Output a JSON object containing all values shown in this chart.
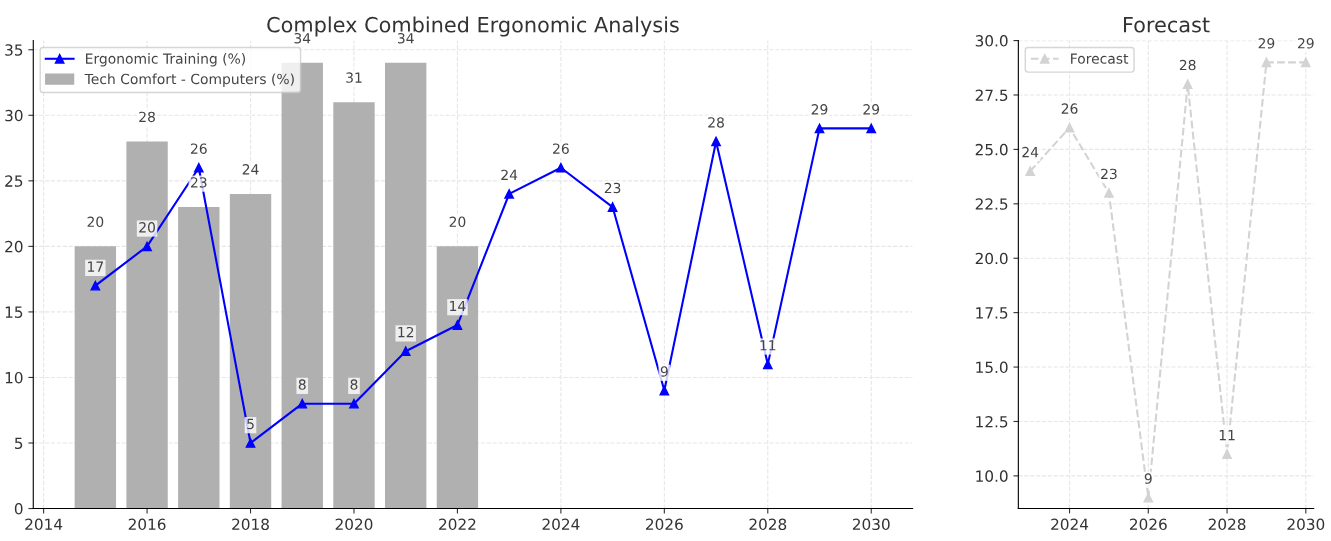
{
  "chart_data": [
    {
      "type": "bar",
      "title": "Complex Combined Ergonomic Analysis",
      "xlim": [
        2013.8,
        2030.8
      ],
      "ylim": [
        0,
        35.7
      ],
      "xticks": [
        2014,
        2016,
        2018,
        2020,
        2022,
        2024,
        2026,
        2028,
        2030
      ],
      "yticks": [
        0,
        5,
        10,
        15,
        20,
        25,
        30,
        35
      ],
      "grid": true,
      "legend": "top left",
      "data_labels": true,
      "marker": "triangle",
      "line_style": "solid",
      "series": [
        {
          "name": "Ergonomic Training (%)",
          "type": "line",
          "color": "#0000ff",
          "x": [
            2015,
            2016,
            2017,
            2018,
            2019,
            2020,
            2021,
            2022,
            2023,
            2024,
            2025,
            2026,
            2027,
            2028,
            2029,
            2030
          ],
          "values": [
            17,
            20,
            26,
            5,
            8,
            8,
            12,
            14,
            24,
            26,
            23,
            9,
            28,
            11,
            29,
            29
          ]
        },
        {
          "name": "Tech Comfort - Computers (%)",
          "type": "bar",
          "color": "#b0b0b0",
          "x": [
            2015,
            2016,
            2017,
            2018,
            2019,
            2020,
            2021,
            2022
          ],
          "values": [
            20,
            28,
            23,
            24,
            34,
            31,
            34,
            20
          ]
        }
      ]
    },
    {
      "type": "line",
      "title": "Forecast",
      "xlim": [
        2022.7,
        2030.2
      ],
      "ylim": [
        8.5,
        30
      ],
      "xticks": [
        2024,
        2026,
        2028,
        2030
      ],
      "yticks": [
        {
          "value": 10,
          "label": "10.0"
        },
        {
          "value": 12.5,
          "label": "12.5"
        },
        {
          "value": 15,
          "label": "15.0"
        },
        {
          "value": 17.5,
          "label": "17.5"
        },
        {
          "value": 20,
          "label": "20.0"
        },
        {
          "value": 22.5,
          "label": "22.5"
        },
        {
          "value": 25,
          "label": "25.0"
        },
        {
          "value": 27.5,
          "label": "27.5"
        },
        {
          "value": 30,
          "label": "30.0"
        }
      ],
      "grid": true,
      "legend": "top left",
      "data_labels": true,
      "marker": "triangle",
      "line_style": "dashed",
      "series": [
        {
          "name": "Forecast",
          "color": "#d3d3d3",
          "x": [
            2023,
            2024,
            2025,
            2026,
            2027,
            2028,
            2029,
            2030
          ],
          "values": [
            24,
            26,
            23,
            9,
            28,
            11,
            29,
            29
          ]
        }
      ]
    }
  ]
}
